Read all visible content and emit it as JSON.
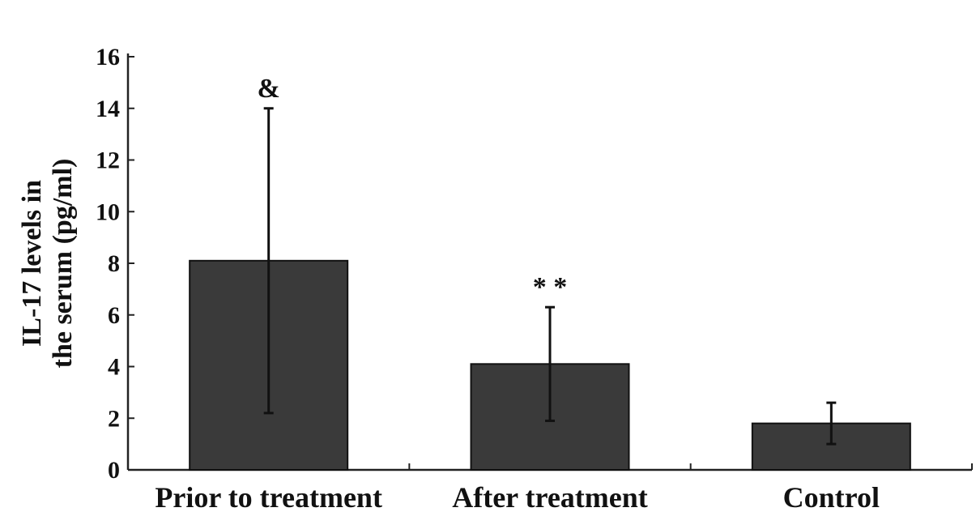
{
  "chart_data": {
    "type": "bar",
    "categories": [
      "Prior to treatment",
      "After treatment",
      "Control"
    ],
    "values": [
      8.1,
      4.1,
      1.8
    ],
    "error_high": [
      14.0,
      6.3,
      2.6
    ],
    "error_low": [
      2.2,
      1.9,
      1.0
    ],
    "annotations": [
      "&",
      "* *",
      ""
    ],
    "ylabel_lines": [
      "IL-17 levels in",
      "the serum (pg/ml)"
    ],
    "ylim": [
      0,
      16
    ],
    "yticks": [
      0,
      2,
      4,
      6,
      8,
      10,
      12,
      14,
      16
    ],
    "grid": false,
    "bar_color": "#3a3a3a"
  }
}
